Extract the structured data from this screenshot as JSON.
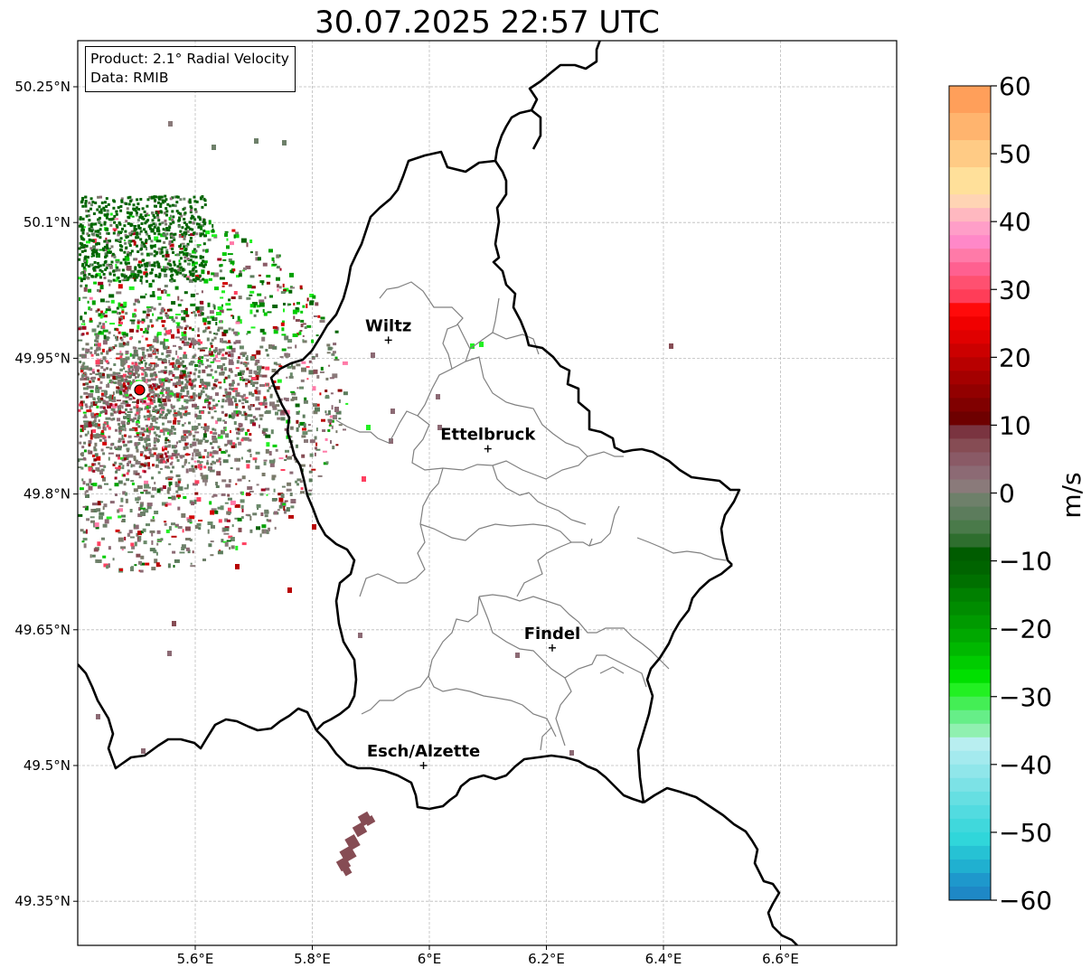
{
  "title": "30.07.2025 22:57 UTC",
  "info": {
    "product": "Product: 2.1° Radial Velocity",
    "data": "Data: RMIB"
  },
  "map": {
    "lon_range": [
      5.4,
      6.8
    ],
    "lat_range": [
      49.33,
      50.3
    ],
    "lon_ticks": [
      {
        "value": 5.6,
        "label": "5.6°E"
      },
      {
        "value": 5.8,
        "label": "5.8°E"
      },
      {
        "value": 6.0,
        "label": "6°E"
      },
      {
        "value": 6.2,
        "label": "6.2°E"
      },
      {
        "value": 6.4,
        "label": "6.4°E"
      },
      {
        "value": 6.6,
        "label": "6.6°E"
      }
    ],
    "lat_ticks": [
      {
        "value": 50.25,
        "label": "50.25°N"
      },
      {
        "value": 50.1,
        "label": "50.1°N"
      },
      {
        "value": 49.95,
        "label": "49.95°N"
      },
      {
        "value": 49.8,
        "label": "49.8°N"
      },
      {
        "value": 49.65,
        "label": "49.65°N"
      },
      {
        "value": 49.5,
        "label": "49.5°N"
      },
      {
        "value": 49.35,
        "label": "49.35°N"
      }
    ],
    "gridlines": true,
    "cities": [
      {
        "name": "Wiltz",
        "lon": 5.93,
        "lat": 49.97
      },
      {
        "name": "Ettelbruck",
        "lon": 6.1,
        "lat": 49.85
      },
      {
        "name": "Findel",
        "lon": 6.21,
        "lat": 49.63
      },
      {
        "name": "Esch/Alzette",
        "lon": 5.99,
        "lat": 49.5
      }
    ],
    "radar_site": {
      "lon": 5.505,
      "lat": 49.915
    }
  },
  "colorbar": {
    "label": "m/s",
    "min": -60,
    "max": 60,
    "ticks": [
      {
        "value": 60,
        "label": "60"
      },
      {
        "value": 50,
        "label": "50"
      },
      {
        "value": 40,
        "label": "40"
      },
      {
        "value": 30,
        "label": "30"
      },
      {
        "value": 20,
        "label": "20"
      },
      {
        "value": 10,
        "label": "10"
      },
      {
        "value": 0,
        "label": "0"
      },
      {
        "value": -10,
        "label": "−10"
      },
      {
        "value": -20,
        "label": "−20"
      },
      {
        "value": -30,
        "label": "−30"
      },
      {
        "value": -40,
        "label": "−40"
      },
      {
        "value": -50,
        "label": "−50"
      },
      {
        "value": -60,
        "label": "−60"
      }
    ],
    "bands": [
      {
        "from": 56,
        "to": 60,
        "color": "#ff9f5a"
      },
      {
        "from": 52,
        "to": 56,
        "color": "#ffb46e"
      },
      {
        "from": 48,
        "to": 52,
        "color": "#ffcb85"
      },
      {
        "from": 44,
        "to": 48,
        "color": "#ffe09a"
      },
      {
        "from": 42,
        "to": 44,
        "color": "#ffd4b4"
      },
      {
        "from": 40,
        "to": 42,
        "color": "#ffb8c0"
      },
      {
        "from": 38,
        "to": 40,
        "color": "#ff9ec8"
      },
      {
        "from": 36,
        "to": 38,
        "color": "#ff88c8"
      },
      {
        "from": 34,
        "to": 36,
        "color": "#ff7aa8"
      },
      {
        "from": 32,
        "to": 34,
        "color": "#ff6090"
      },
      {
        "from": 30,
        "to": 32,
        "color": "#ff5070"
      },
      {
        "from": 28,
        "to": 30,
        "color": "#ff3d58"
      },
      {
        "from": 26,
        "to": 28,
        "color": "#ff0a0a"
      },
      {
        "from": 24,
        "to": 26,
        "color": "#f00000"
      },
      {
        "from": 22,
        "to": 24,
        "color": "#e00000"
      },
      {
        "from": 20,
        "to": 22,
        "color": "#cc0000"
      },
      {
        "from": 18,
        "to": 20,
        "color": "#b80000"
      },
      {
        "from": 16,
        "to": 18,
        "color": "#a40000"
      },
      {
        "from": 14,
        "to": 16,
        "color": "#920000"
      },
      {
        "from": 12,
        "to": 14,
        "color": "#800000"
      },
      {
        "from": 10,
        "to": 12,
        "color": "#6e0000"
      },
      {
        "from": 8,
        "to": 10,
        "color": "#7a3440"
      },
      {
        "from": 6,
        "to": 8,
        "color": "#864c54"
      },
      {
        "from": 4,
        "to": 6,
        "color": "#8a5a66"
      },
      {
        "from": 2,
        "to": 4,
        "color": "#8c6a74"
      },
      {
        "from": 0,
        "to": 2,
        "color": "#8a7a7a"
      },
      {
        "from": -2,
        "to": 0,
        "color": "#6e806a"
      },
      {
        "from": -4,
        "to": -2,
        "color": "#5c7c5c"
      },
      {
        "from": -6,
        "to": -4,
        "color": "#4a7a4a"
      },
      {
        "from": -8,
        "to": -6,
        "color": "#2e6e2e"
      },
      {
        "from": -10,
        "to": -8,
        "color": "#005c00"
      },
      {
        "from": -12,
        "to": -10,
        "color": "#006400"
      },
      {
        "from": -14,
        "to": -12,
        "color": "#007000"
      },
      {
        "from": -16,
        "to": -14,
        "color": "#008000"
      },
      {
        "from": -18,
        "to": -16,
        "color": "#008c00"
      },
      {
        "from": -20,
        "to": -18,
        "color": "#009a00"
      },
      {
        "from": -22,
        "to": -20,
        "color": "#00a800"
      },
      {
        "from": -24,
        "to": -22,
        "color": "#00b800"
      },
      {
        "from": -26,
        "to": -24,
        "color": "#00cc00"
      },
      {
        "from": -28,
        "to": -26,
        "color": "#00e000"
      },
      {
        "from": -30,
        "to": -28,
        "color": "#22f022"
      },
      {
        "from": -32,
        "to": -30,
        "color": "#44ee55"
      },
      {
        "from": -34,
        "to": -32,
        "color": "#66ee88"
      },
      {
        "from": -36,
        "to": -34,
        "color": "#90f0b0"
      },
      {
        "from": -38,
        "to": -36,
        "color": "#b8eef0"
      },
      {
        "from": -40,
        "to": -38,
        "color": "#a4eaee"
      },
      {
        "from": -42,
        "to": -40,
        "color": "#90e6ea"
      },
      {
        "from": -44,
        "to": -42,
        "color": "#7ce2e6"
      },
      {
        "from": -46,
        "to": -44,
        "color": "#66dfe2"
      },
      {
        "from": -48,
        "to": -46,
        "color": "#52dbe0"
      },
      {
        "from": -50,
        "to": -48,
        "color": "#40d8dc"
      },
      {
        "from": -52,
        "to": -50,
        "color": "#30d6da"
      },
      {
        "from": -54,
        "to": -52,
        "color": "#26c2d4"
      },
      {
        "from": -56,
        "to": -54,
        "color": "#20b0d0"
      },
      {
        "from": -58,
        "to": -56,
        "color": "#1e98cc"
      },
      {
        "from": -60,
        "to": -58,
        "color": "#1e88c6"
      }
    ]
  }
}
